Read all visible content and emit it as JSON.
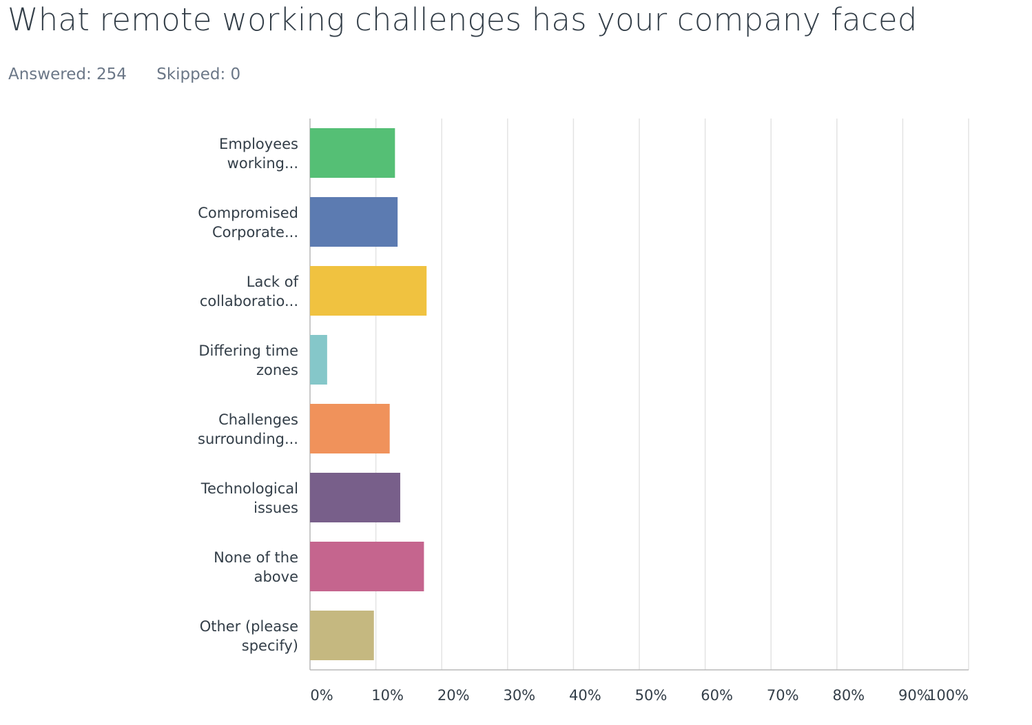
{
  "header": {
    "title": "What remote working challenges has your company faced",
    "answered": "Answered: 254",
    "skipped": "Skipped: 0"
  },
  "colors": {
    "grid": "#e3e3e3",
    "axis": "#b8b8b8"
  },
  "chart_data": {
    "type": "bar",
    "orientation": "horizontal",
    "categories": [
      [
        "Employees",
        "working..."
      ],
      [
        "Compromised",
        "Corporate..."
      ],
      [
        "Lack of",
        "collaboratio..."
      ],
      [
        "Differing time",
        "zones"
      ],
      [
        "Challenges",
        "surrounding..."
      ],
      [
        "Technological",
        "issues"
      ],
      [
        "None of the",
        "above"
      ],
      [
        "Other (please",
        "specify)"
      ]
    ],
    "values": [
      12.9,
      13.3,
      17.7,
      2.6,
      12.1,
      13.7,
      17.3,
      9.7
    ],
    "bar_colors": [
      "#55bf75",
      "#5c7bb1",
      "#f0c240",
      "#85c7c9",
      "#f0925b",
      "#785f8a",
      "#c5658e",
      "#c5b880"
    ],
    "xlim": [
      0,
      100
    ],
    "ticks": [
      "0%",
      "10%",
      "20%",
      "30%",
      "40%",
      "50%",
      "60%",
      "70%",
      "80%",
      "90%",
      "100%"
    ],
    "tick_values": [
      0,
      10,
      20,
      30,
      40,
      50,
      60,
      70,
      80,
      90,
      100
    ],
    "grid": true,
    "legend": "none"
  }
}
